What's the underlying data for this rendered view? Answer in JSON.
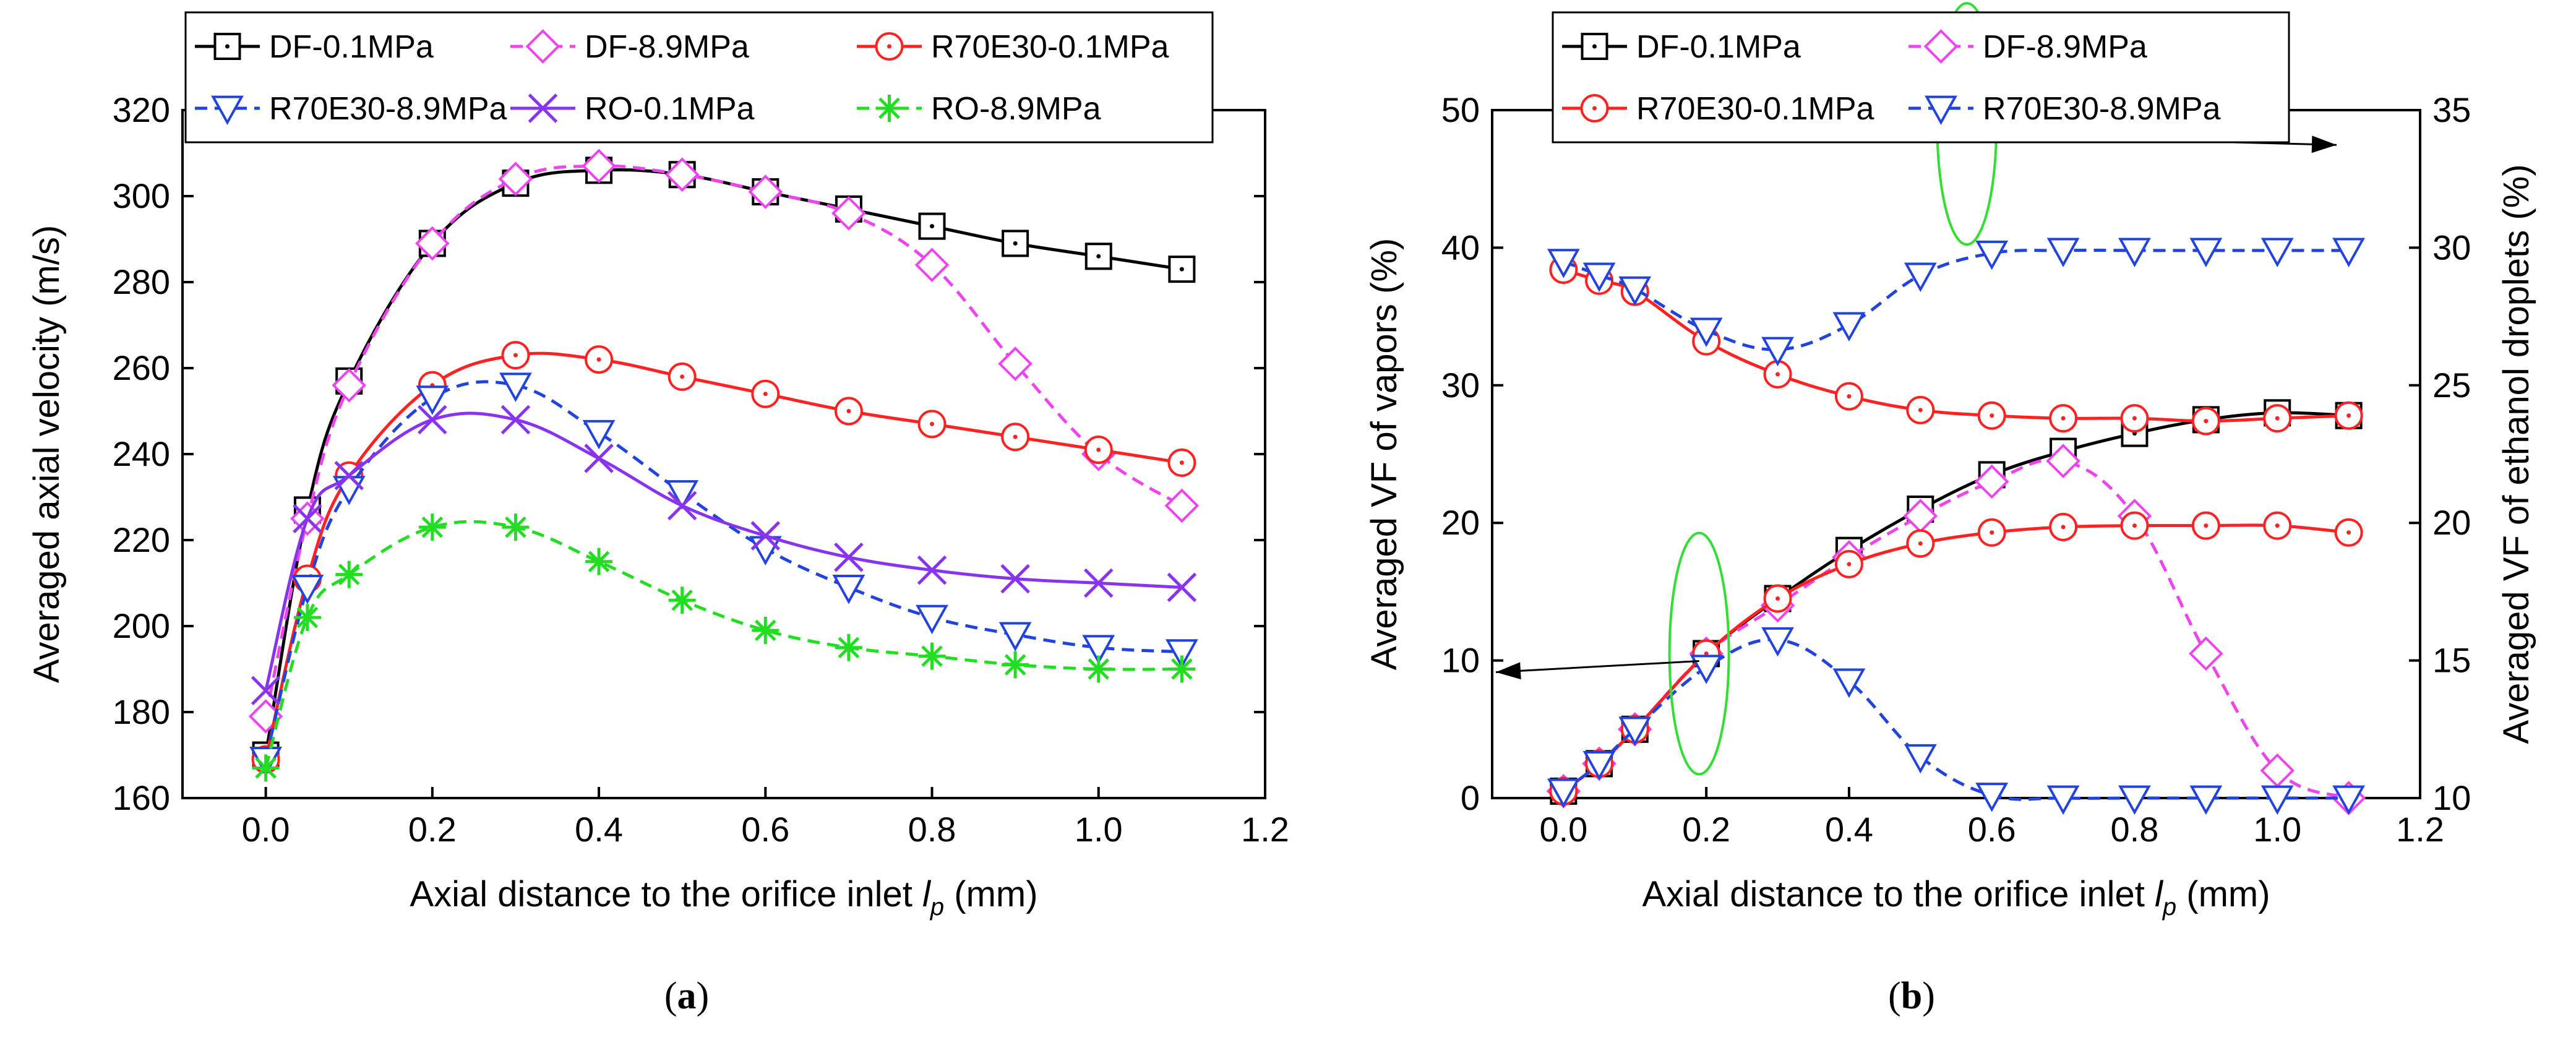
{
  "captions": {
    "a": "a",
    "b": "b"
  },
  "chart_data": [
    {
      "type": "line",
      "panel": "a",
      "xlabel_main": "Axial distance to the orifice inlet ",
      "xlabel_symbol": "l",
      "xlabel_sub": "p",
      "xlabel_unit": " (mm)",
      "ylabel": "Averaged axial velocity (m/s)",
      "xlim": [
        -0.1,
        1.2
      ],
      "ylim": [
        160,
        320
      ],
      "xticks": [
        "0.0",
        "0.2",
        "0.4",
        "0.6",
        "0.8",
        "1.0",
        "1.2"
      ],
      "xtick_values": [
        0.0,
        0.2,
        0.4,
        0.6,
        0.8,
        1.0,
        1.2
      ],
      "yticks": [
        "160",
        "180",
        "200",
        "220",
        "240",
        "260",
        "280",
        "300",
        "320"
      ],
      "ytick_values": [
        160,
        180,
        200,
        220,
        240,
        260,
        280,
        300,
        320
      ],
      "legend_position": "top",
      "series": [
        {
          "name": "DF-0.1MPa",
          "color": "#000000",
          "marker": "square-dot",
          "dash": "solid",
          "x": [
            0,
            0.05,
            0.1,
            0.2,
            0.3,
            0.4,
            0.5,
            0.6,
            0.7,
            0.8,
            0.9,
            1.0,
            1.1
          ],
          "y": [
            170,
            227,
            257,
            289,
            303,
            306,
            305,
            301,
            297,
            293,
            289,
            286,
            283
          ]
        },
        {
          "name": "DF-8.9MPa",
          "color": "#ee44ee",
          "marker": "diamond",
          "dash": "dashed",
          "x": [
            0,
            0.05,
            0.1,
            0.2,
            0.3,
            0.4,
            0.5,
            0.6,
            0.7,
            0.8,
            0.9,
            1.0,
            1.1
          ],
          "y": [
            179,
            225,
            256,
            289,
            304,
            307,
            305,
            301,
            296,
            284,
            261,
            240,
            228
          ]
        },
        {
          "name": "R70E30-0.1MPa",
          "color": "#ff2222",
          "marker": "circle-dot",
          "dash": "solid",
          "x": [
            0,
            0.05,
            0.1,
            0.2,
            0.3,
            0.4,
            0.5,
            0.6,
            0.7,
            0.8,
            0.9,
            1.0,
            1.1
          ],
          "y": [
            169,
            211,
            235,
            256,
            263,
            262,
            258,
            254,
            250,
            247,
            244,
            241,
            238
          ]
        },
        {
          "name": "R70E30-8.9MPa",
          "color": "#2244dd",
          "marker": "triangle-down",
          "dash": "dashed",
          "x": [
            0,
            0.05,
            0.1,
            0.2,
            0.3,
            0.4,
            0.5,
            0.6,
            0.7,
            0.8,
            0.9,
            1.0,
            1.1
          ],
          "y": [
            169,
            209,
            232,
            253,
            256,
            245,
            231,
            218,
            209,
            202,
            198,
            195,
            194
          ]
        },
        {
          "name": "RO-0.1MPa",
          "color": "#8833ee",
          "marker": "x",
          "dash": "solid",
          "x": [
            0,
            0.05,
            0.1,
            0.2,
            0.3,
            0.4,
            0.5,
            0.6,
            0.7,
            0.8,
            0.9,
            1.0,
            1.1
          ],
          "y": [
            185,
            225,
            235,
            248,
            248,
            239,
            228,
            221,
            216,
            213,
            211,
            210,
            209
          ]
        },
        {
          "name": "RO-8.9MPa",
          "color": "#22dd22",
          "marker": "asterisk",
          "dash": "dashed",
          "x": [
            0,
            0.05,
            0.1,
            0.2,
            0.3,
            0.4,
            0.5,
            0.6,
            0.7,
            0.8,
            0.9,
            1.0,
            1.1
          ],
          "y": [
            167,
            202,
            212,
            223,
            223,
            215,
            206,
            199,
            195,
            193,
            191,
            190,
            190
          ]
        }
      ]
    },
    {
      "type": "line",
      "panel": "b",
      "xlabel_main": "Axial distance to the orifice inlet ",
      "xlabel_symbol": "l",
      "xlabel_sub": "p",
      "xlabel_unit": " (mm)",
      "ylabel": "Averaged VF of vapors (%)",
      "ylabel_right": "Averaged VF of ethanol droplets (%)",
      "xlim": [
        -0.1,
        1.2
      ],
      "ylim": [
        0,
        50
      ],
      "ylim_right": [
        10,
        35
      ],
      "xticks": [
        "0.0",
        "0.2",
        "0.4",
        "0.6",
        "0.8",
        "1.0",
        "1.2"
      ],
      "xtick_values": [
        0.0,
        0.2,
        0.4,
        0.6,
        0.8,
        1.0,
        1.2
      ],
      "yticks": [
        "0",
        "10",
        "20",
        "30",
        "40",
        "50"
      ],
      "ytick_values": [
        0,
        10,
        20,
        30,
        40,
        50
      ],
      "yticks_right": [
        "10",
        "15",
        "20",
        "25",
        "30",
        "35"
      ],
      "ytick_values_right": [
        10,
        15,
        20,
        25,
        30,
        35
      ],
      "legend_position": "top",
      "series": [
        {
          "name": "DF-0.1MPa",
          "color": "#000000",
          "marker": "square-dot",
          "dash": "solid",
          "axis": "left",
          "x": [
            0,
            0.05,
            0.1,
            0.2,
            0.3,
            0.4,
            0.5,
            0.6,
            0.7,
            0.8,
            0.9,
            1.0,
            1.1
          ],
          "y": [
            0.5,
            2.5,
            5,
            10.5,
            14.5,
            18,
            21,
            23.5,
            25.2,
            26.5,
            27.5,
            28,
            27.8
          ]
        },
        {
          "name": "DF-8.9MPa",
          "color": "#ee44ee",
          "marker": "diamond",
          "dash": "dashed",
          "axis": "left",
          "x": [
            0,
            0.05,
            0.1,
            0.2,
            0.3,
            0.4,
            0.5,
            0.6,
            0.7,
            0.8,
            0.9,
            1.0,
            1.1
          ],
          "y": [
            0.5,
            2.5,
            5,
            10.5,
            14,
            17.5,
            20.5,
            23,
            24.5,
            20.5,
            10.5,
            2,
            0
          ]
        },
        {
          "name": "R70E30-0.1MPa",
          "color": "#ff2222",
          "marker": "circle-dot",
          "dash": "solid",
          "axis": "left",
          "x": [
            0,
            0.05,
            0.1,
            0.2,
            0.3,
            0.4,
            0.5,
            0.6,
            0.7,
            0.8,
            0.9,
            1.0,
            1.1
          ],
          "y": [
            0.5,
            2.5,
            5,
            10.5,
            14.5,
            17,
            18.5,
            19.3,
            19.7,
            19.8,
            19.8,
            19.8,
            19.3
          ]
        },
        {
          "name": "R70E30-8.9MPa",
          "color": "#2244dd",
          "marker": "triangle-down",
          "dash": "dashed",
          "axis": "left",
          "x": [
            0,
            0.05,
            0.1,
            0.2,
            0.3,
            0.4,
            0.5,
            0.6,
            0.7,
            0.8,
            0.9,
            1.0,
            1.1
          ],
          "y": [
            0.5,
            2.5,
            5,
            9.5,
            11.5,
            8.5,
            3,
            0.2,
            0,
            0,
            0,
            0,
            0
          ]
        },
        {
          "name": "R70E30-0.1MPa (ethanol droplets)",
          "color": "#ff2222",
          "marker": "circle-dot",
          "dash": "solid",
          "axis": "right",
          "in_legend": false,
          "x": [
            0,
            0.05,
            0.1,
            0.2,
            0.3,
            0.4,
            0.5,
            0.6,
            0.7,
            0.8,
            0.9,
            1.0,
            1.1
          ],
          "y": [
            29.2,
            28.8,
            28.4,
            26.6,
            25.4,
            24.6,
            24.1,
            23.9,
            23.8,
            23.8,
            23.7,
            23.8,
            23.9
          ]
        },
        {
          "name": "R70E30-8.9MPa (ethanol droplets)",
          "color": "#2244dd",
          "marker": "triangle-down",
          "dash": "dashed",
          "axis": "right",
          "in_legend": false,
          "x": [
            0,
            0.05,
            0.1,
            0.2,
            0.3,
            0.4,
            0.5,
            0.6,
            0.7,
            0.8,
            0.9,
            1.0,
            1.1
          ],
          "y": [
            29.5,
            29,
            28.5,
            27,
            26.3,
            27.2,
            29,
            29.8,
            29.9,
            29.9,
            29.9,
            29.9,
            29.9
          ]
        }
      ],
      "annotations": [
        {
          "type": "ellipse-arrow",
          "points_to": "left-axis",
          "center_x": 0.19,
          "center_y": 10.5
        },
        {
          "type": "ellipse-arrow",
          "points_to": "right-axis",
          "center_x": 0.565,
          "center_y": 34.5
        }
      ]
    }
  ]
}
